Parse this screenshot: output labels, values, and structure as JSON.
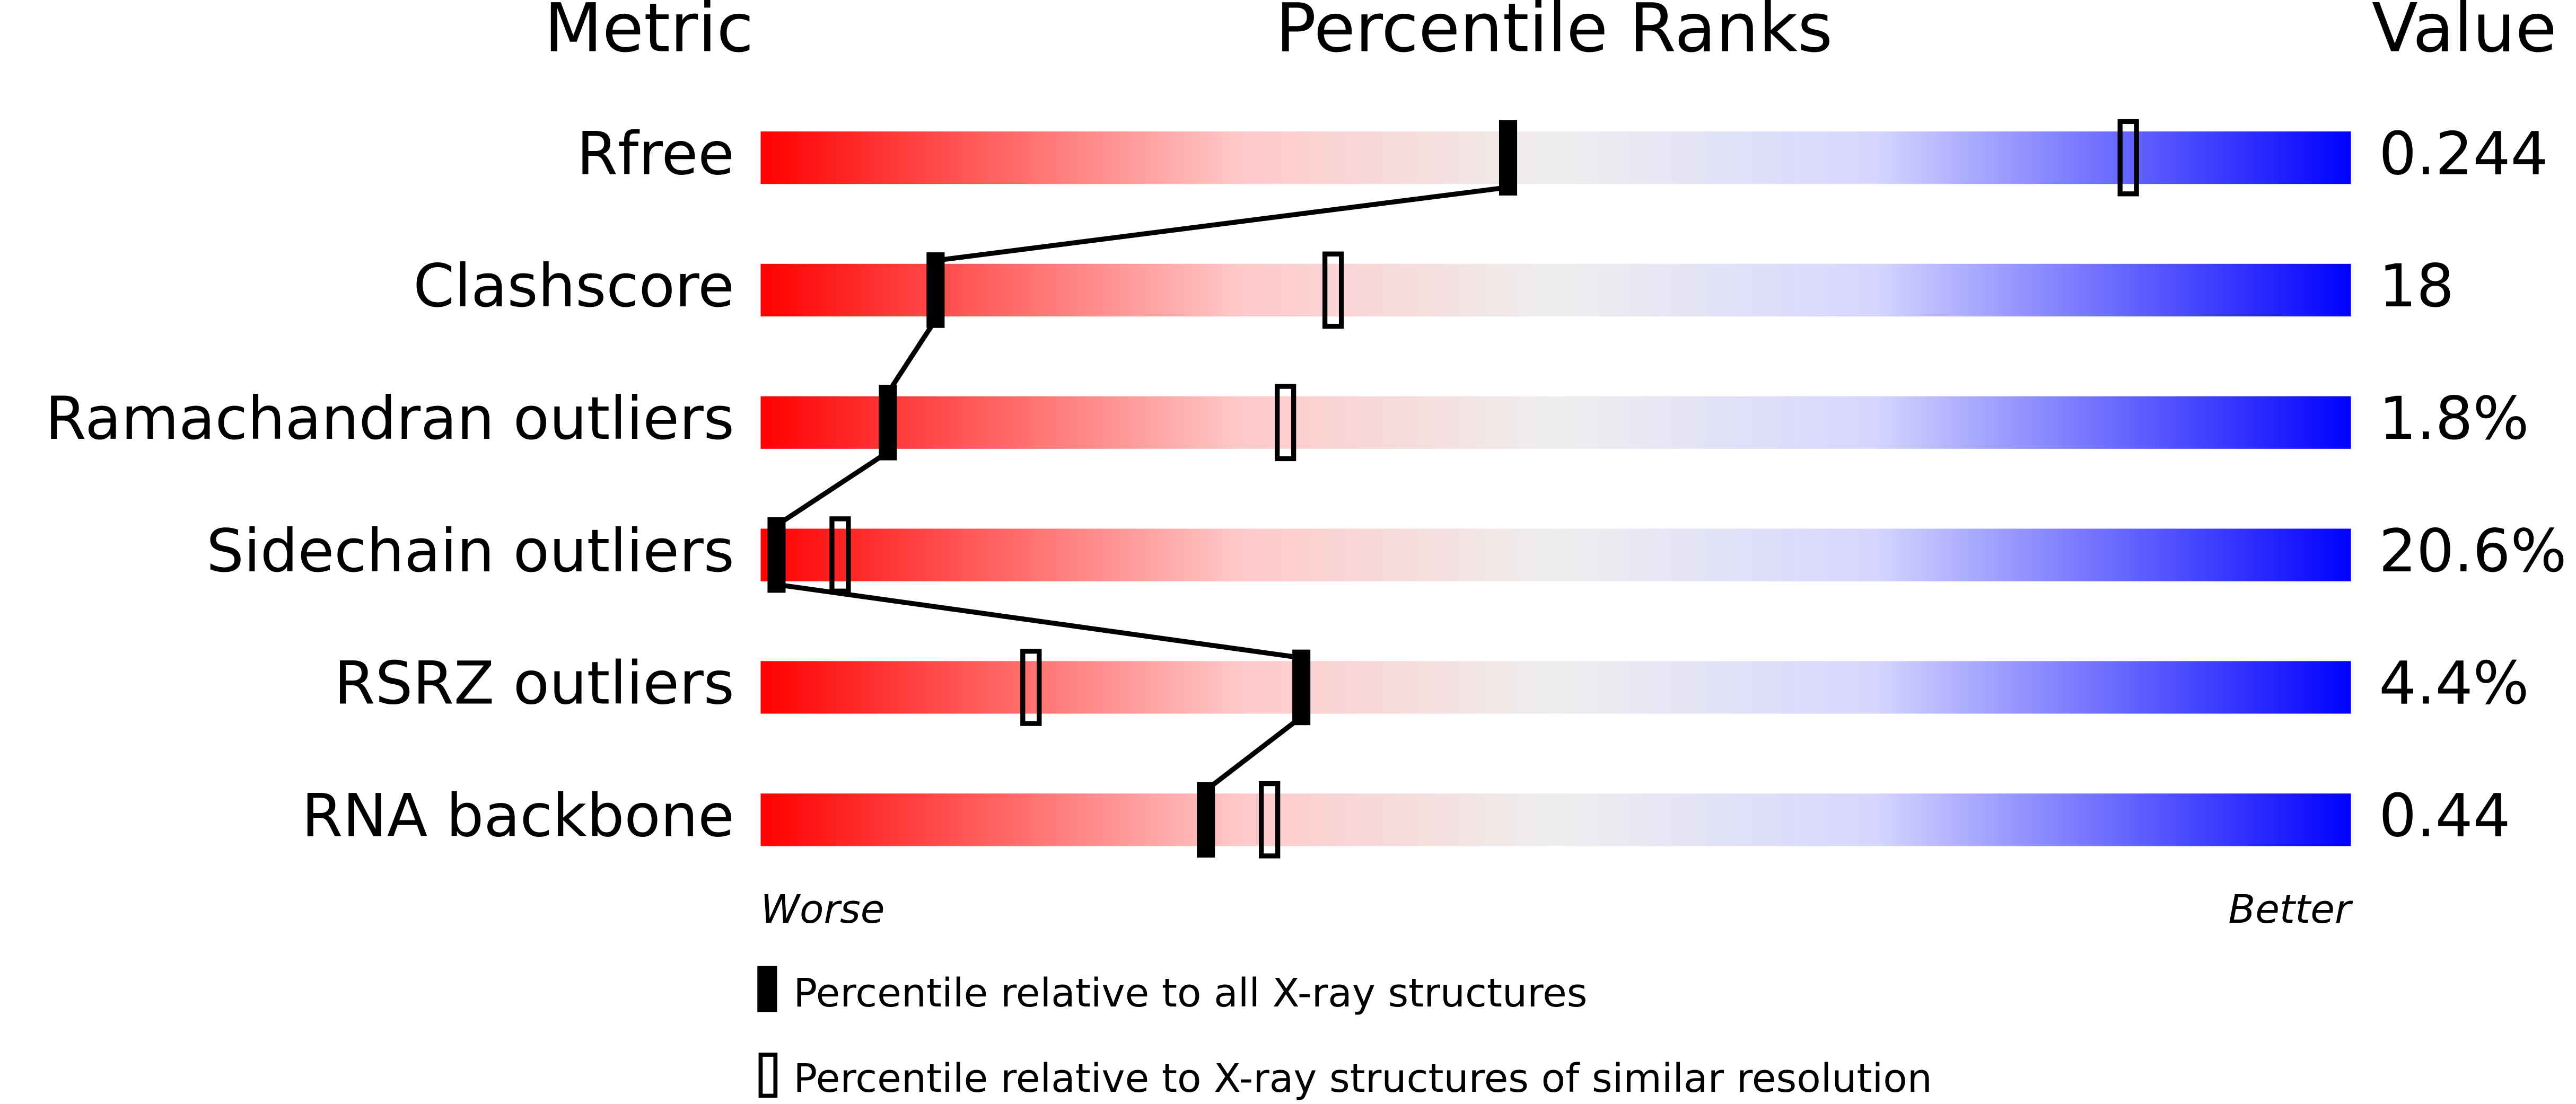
{
  "chart_data": {
    "type": "percentile",
    "headers": {
      "metric": "Metric",
      "ranks": "Percentile Ranks",
      "value": "Value"
    },
    "categories": [
      "Rfree",
      "Clashscore",
      "Ramachandran outliers",
      "Sidechain outliers",
      "RSRZ outliers",
      "RNA backbone"
    ],
    "series": [
      {
        "name": "Percentile relative to all X-ray structures",
        "color": "#000000",
        "style": "filled",
        "values": [
          47,
          11,
          8,
          1,
          34,
          28
        ]
      },
      {
        "name": "Percentile relative to X-ray structures of similar resolution",
        "color": "#000000",
        "style": "hollow",
        "values": [
          86,
          36,
          33,
          5,
          17,
          32
        ]
      }
    ],
    "metric_values": [
      "0.244",
      "18",
      "1.8%",
      "20.6%",
      "4.4%",
      "0.44"
    ],
    "xlim": [
      0,
      100
    ],
    "axis_labels": {
      "worse": "Worse",
      "better": "Better"
    }
  }
}
